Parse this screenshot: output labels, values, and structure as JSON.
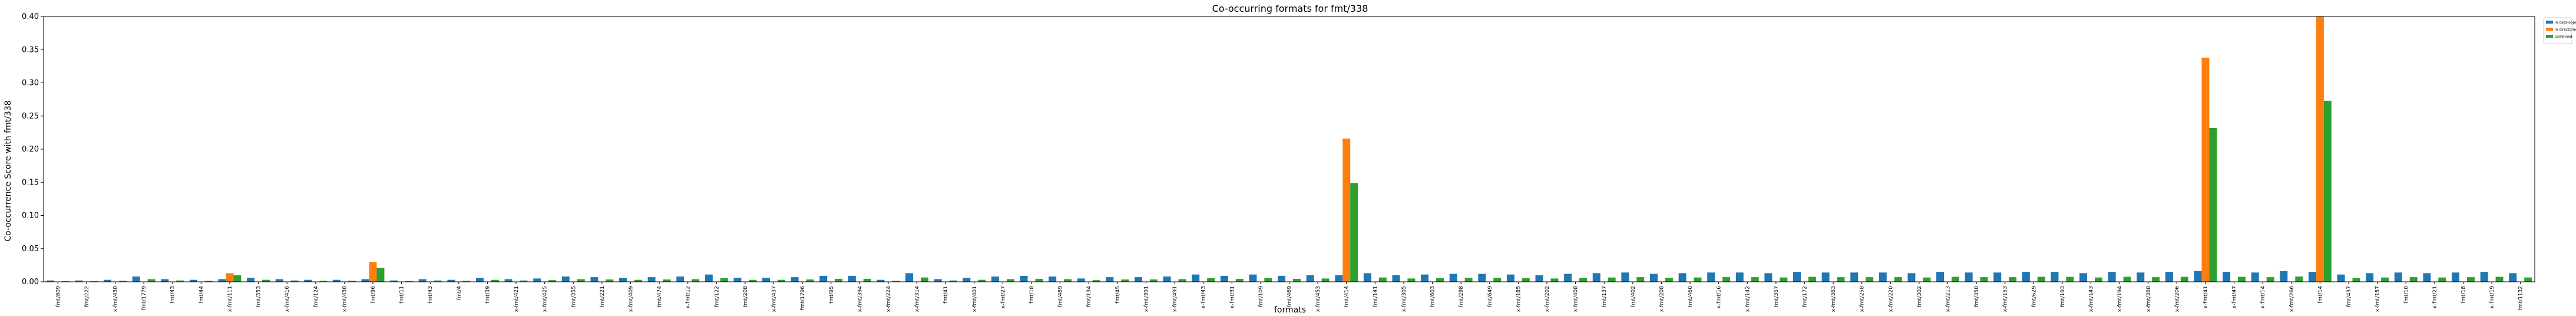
{
  "chart_data": {
    "type": "bar",
    "title": "Co-occurring formats for fmt/338",
    "xlabel": "formats",
    "ylabel": "Co-occurrence Score with fmt/338",
    "ylim": [
      0,
      0.4
    ],
    "yticks": [
      "0.00",
      "0.05",
      "0.10",
      "0.15",
      "0.20",
      "0.25",
      "0.30",
      "0.35",
      "0.40"
    ],
    "legend_position": "top-right outside",
    "grid": false,
    "categories": [
      "fmt/809",
      "fmt/222",
      "x-fmt/430",
      "fmt/1779",
      "fmt/43",
      "fmt/44",
      "x-fmt/111",
      "fmt/353",
      "x-fmt/416",
      "fmt/124",
      "x-fmt/430",
      "fmt/96",
      "fmt/11",
      "fmt/43",
      "fmt/4",
      "fmt/39",
      "x-fmt/421",
      "x-fmt/425",
      "fmt/355",
      "fmt/221",
      "x-fmt/409",
      "fmt/474",
      "x-fmt/12",
      "fmt/122",
      "fmt/208",
      "x-fmt/437",
      "fmt/1796",
      "fmt/95",
      "x-fmt/394",
      "x-fmt/224",
      "x-fmt/314",
      "fmt/41",
      "x-fmt/401",
      "x-fmt/27",
      "fmt/18",
      "fmt/489",
      "fmt/134",
      "fmt/45",
      "x-fmt/391",
      "x-fmt/491",
      "x-fmt/43",
      "x-fmt/31",
      "fmt/109",
      "fmt/469",
      "x-fmt/453",
      "fmt/414",
      "fmt/141",
      "x-fmt/305",
      "fmt/603",
      "fmt/298",
      "fmt/649",
      "x-fmt/185",
      "x-fmt/202",
      "x-fmt/408",
      "fmt/137",
      "fmt/402",
      "x-fmt/208",
      "fmt/460",
      "x-fmt/16",
      "x-fmt/142",
      "fmt/357",
      "fmt/172",
      "x-fmt/383",
      "x-fmt/258",
      "x-fmt/220",
      "fmt/302",
      "x-fmt/213",
      "fmt/350",
      "x-fmt/153",
      "fmt/629",
      "fmt/193",
      "x-fmt/143",
      "x-fmt/194",
      "x-fmt/388",
      "x-fmt/206",
      "x-fmt/41",
      "x-fmt/47",
      "x-fmt/14",
      "x-fmt/266",
      "fmt/14",
      "fmt/437",
      "x-fmt/157",
      "fmt/10",
      "x-fmt/21",
      "fmt/18",
      "x-fmt/19",
      "fmt/1132"
    ],
    "highlight_categories": [
      "fmt/638",
      "fmt/239",
      "fmt/597"
    ],
    "series": [
      {
        "name": "in data-objects",
        "color": "#1f77b4",
        "values": [
          0.002,
          0.002,
          0.003,
          0.008,
          0.004,
          0.003,
          0.004,
          0.006,
          0.004,
          0.003,
          0.003,
          0.004,
          0.002,
          0.004,
          0.003,
          0.006,
          0.004,
          0.005,
          0.008,
          0.007,
          0.006,
          0.007,
          0.008,
          0.011,
          0.006,
          0.006,
          0.007,
          0.009,
          0.009,
          0.003,
          0.013,
          0.004,
          0.006,
          0.008,
          0.009,
          0.008,
          0.005,
          0.007,
          0.007,
          0.008,
          0.011,
          0.009,
          0.011,
          0.009,
          0.01,
          0.01,
          0.013,
          0.01,
          0.011,
          0.012,
          0.012,
          0.011,
          0.01,
          0.012,
          0.013,
          0.014,
          0.012,
          0.013,
          0.014,
          0.014,
          0.013,
          0.015,
          0.014,
          0.014,
          0.014,
          0.013,
          0.015,
          0.014,
          0.014,
          0.015,
          0.015,
          0.013,
          0.015,
          0.014,
          0.015,
          0.016,
          0.015,
          0.014,
          0.016,
          0.015,
          0.011,
          0.013,
          0.014,
          0.013,
          0.014,
          0.015,
          0.013
        ]
      },
      {
        "name": "in directories",
        "color": "#ff7f0e",
        "values": [
          0.0,
          0.0,
          0.0,
          0.0,
          0.0,
          0.0,
          0.013,
          0.0,
          0.0,
          0.0,
          0.0,
          0.03,
          0.0,
          0.0,
          0.0,
          0.0,
          0.0,
          0.0,
          0.0,
          0.0,
          0.0,
          0.0,
          0.0,
          0.0,
          0.0,
          0.0,
          0.0,
          0.0,
          0.0,
          0.0,
          0.0,
          0.0,
          0.0,
          0.0,
          0.0,
          0.0,
          0.0,
          0.0,
          0.0,
          0.0,
          0.0,
          0.0,
          0.0,
          0.0,
          0.0,
          0.216,
          0.0,
          0.0,
          0.0,
          0.0,
          0.0,
          0.0,
          0.0,
          0.0,
          0.0,
          0.0,
          0.0,
          0.0,
          0.0,
          0.0,
          0.0,
          0.0,
          0.0,
          0.0,
          0.0,
          0.0,
          0.0,
          0.0,
          0.0,
          0.0,
          0.0,
          0.0,
          0.0,
          0.0,
          0.0,
          0.338,
          0.0,
          0.0,
          0.0,
          0.4,
          0.0,
          0.0,
          0.0,
          0.0,
          0.0,
          0.0,
          0.0
        ]
      },
      {
        "name": "combined",
        "color": "#2ca02c",
        "values": [
          0.001,
          0.001,
          0.0015,
          0.004,
          0.002,
          0.0015,
          0.01,
          0.003,
          0.002,
          0.0015,
          0.0015,
          0.021,
          0.001,
          0.002,
          0.0015,
          0.003,
          0.002,
          0.0025,
          0.004,
          0.0035,
          0.003,
          0.0035,
          0.004,
          0.0055,
          0.003,
          0.003,
          0.0035,
          0.0045,
          0.0045,
          0.0015,
          0.0065,
          0.002,
          0.003,
          0.004,
          0.0045,
          0.004,
          0.0025,
          0.0035,
          0.0035,
          0.004,
          0.0055,
          0.0045,
          0.0055,
          0.0045,
          0.005,
          0.149,
          0.0065,
          0.005,
          0.0055,
          0.006,
          0.006,
          0.0055,
          0.005,
          0.006,
          0.0065,
          0.007,
          0.006,
          0.0065,
          0.007,
          0.007,
          0.0065,
          0.0075,
          0.007,
          0.007,
          0.007,
          0.0065,
          0.0075,
          0.007,
          0.007,
          0.0075,
          0.0075,
          0.0065,
          0.0075,
          0.007,
          0.0075,
          0.232,
          0.0075,
          0.007,
          0.008,
          0.273,
          0.0055,
          0.0065,
          0.007,
          0.0065,
          0.007,
          0.0075,
          0.0065
        ]
      }
    ]
  }
}
